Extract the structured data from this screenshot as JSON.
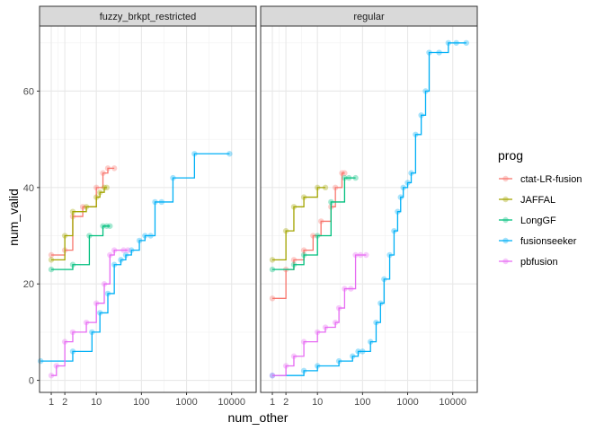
{
  "chart_data": {
    "type": "line",
    "xlabel": "num_other",
    "ylabel": "num_valid",
    "x_scale": "log10",
    "xlim": [
      0.55,
      35000
    ],
    "ylim": [
      -2.5,
      73.5
    ],
    "x_ticks": [
      1,
      2,
      10,
      100,
      1000,
      10000
    ],
    "x_tick_labels": [
      "1",
      "2",
      "10",
      "100",
      "1000",
      "10000"
    ],
    "y_ticks": [
      0,
      20,
      40,
      60
    ],
    "y_tick_labels": [
      "0",
      "20",
      "40",
      "60"
    ],
    "grid": true,
    "legend": {
      "title": "prog",
      "position": "right"
    },
    "colors": {
      "ctat-LR-fusion": "#F8766D",
      "JAFFAL": "#A3A500",
      "LongGF": "#00BF7D",
      "fusionseeker": "#00B0F6",
      "pbfusion": "#E76BF3"
    },
    "panels": [
      {
        "name": "fuzzy_brkpt_restricted",
        "series": [
          {
            "name": "ctat-LR-fusion",
            "x": [
              1,
              2,
              3,
              5,
              10,
              14,
              18,
              25
            ],
            "y": [
              26,
              27,
              34,
              36,
              40,
              43,
              44,
              44
            ]
          },
          {
            "name": "JAFFAL",
            "x": [
              1,
              2,
              3,
              6,
              10,
              12,
              15,
              17
            ],
            "y": [
              25,
              30,
              35,
              36,
              38,
              39,
              40,
              40
            ]
          },
          {
            "name": "LongGF",
            "x": [
              1,
              3,
              7,
              14,
              17,
              20
            ],
            "y": [
              23,
              24,
              30,
              32,
              32,
              32
            ]
          },
          {
            "name": "fusionseeker",
            "x": [
              0.58,
              3,
              8,
              12,
              18,
              25,
              35,
              45,
              60,
              90,
              120,
              160,
              200,
              280,
              500,
              1500,
              9000
            ],
            "y": [
              4,
              6,
              10,
              14,
              18,
              24,
              25,
              26,
              27,
              29,
              30,
              30,
              37,
              37,
              42,
              47,
              47
            ]
          },
          {
            "name": "pbfusion",
            "x": [
              1,
              1.3,
              2,
              3,
              6,
              10,
              15,
              20,
              25,
              40,
              50
            ],
            "y": [
              1,
              3,
              8,
              10,
              12,
              16,
              20,
              26,
              27,
              27,
              27
            ]
          }
        ]
      },
      {
        "name": "regular",
        "series": [
          {
            "name": "ctat-LR-fusion",
            "x": [
              1,
              2,
              3,
              5,
              8,
              12,
              20,
              25,
              35,
              40
            ],
            "y": [
              17,
              23,
              25,
              27,
              30,
              33,
              36,
              40,
              43,
              43
            ]
          },
          {
            "name": "JAFFAL",
            "x": [
              1,
              2,
              3,
              5,
              10,
              15
            ],
            "y": [
              25,
              31,
              36,
              38,
              40,
              40
            ]
          },
          {
            "name": "LongGF",
            "x": [
              1,
              3,
              5,
              10,
              20,
              40,
              50,
              70
            ],
            "y": [
              23,
              24,
              26,
              30,
              37,
              42,
              42,
              42
            ]
          },
          {
            "name": "fusionseeker",
            "x": [
              1,
              5,
              10,
              30,
              60,
              80,
              100,
              150,
              200,
              250,
              300,
              400,
              500,
              600,
              700,
              800,
              1000,
              1200,
              1500,
              2000,
              2500,
              3000,
              5000,
              8000,
              12000,
              20000
            ],
            "y": [
              1,
              2,
              3,
              4,
              5,
              6,
              6,
              8,
              12,
              16,
              21,
              26,
              31,
              35,
              38,
              40,
              41,
              43,
              51,
              55,
              60,
              68,
              68,
              70,
              70,
              70
            ]
          },
          {
            "name": "pbfusion",
            "x": [
              1,
              2,
              3,
              5,
              10,
              15,
              25,
              30,
              40,
              55,
              70,
              90,
              120
            ],
            "y": [
              1,
              3,
              5,
              8,
              10,
              11,
              12,
              15,
              19,
              19,
              26,
              26,
              26
            ]
          }
        ]
      }
    ]
  }
}
